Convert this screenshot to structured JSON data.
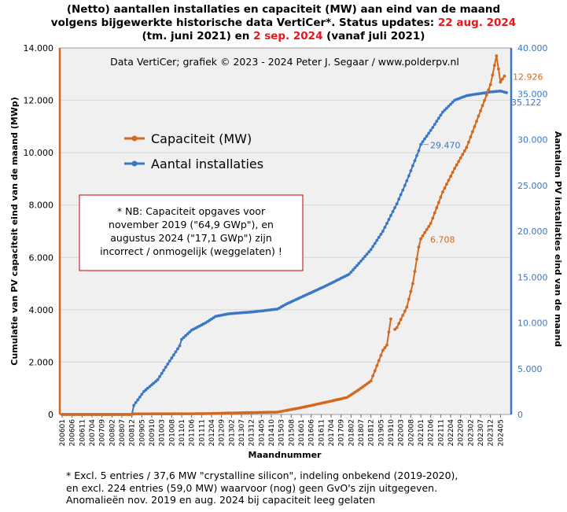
{
  "title": {
    "line1_pre": "(Netto) aantallen installaties en capaciteit (MW) aan eind van de maand",
    "line2_pre": "volgens bijgewerkte historische data VertiCer*. Status updates: ",
    "line2_date": "22 aug. 2024",
    "line3_pre": "(tm. juni 2021) en ",
    "line3_date": "2 sep. 2024",
    "line3_post": " (vanaf juli 2021)"
  },
  "footnote": {
    "line1": "* Excl. 5 entries / 37,6 MW \"crystalline silicon\", indeling onbekend (2019-2020),",
    "line2": "en excl. 224 entries (59,0 MW) waarvoor (nog) geen GvO's zijn uitgegeven.",
    "line3": "Anomalieën nov. 2019 en aug. 2024 bij capaciteit leeg gelaten"
  },
  "colors": {
    "capacity": "#d2691e",
    "count": "#3a77c4",
    "plot_bg": "#f0f0f0",
    "accent_red": "#e8151b"
  },
  "chart_data": {
    "type": "line",
    "credit": "Data VertiCer;  grafiek © 2023 - 2024 Peter J. Segaar / www.polderpv.nl",
    "xlabel": "Maandnummer",
    "ylabel_left": "Cumulatie van PV capaciteit eind van de maand (MWp)",
    "ylabel_right": "Aantallen PV installaties eind van de maand",
    "y_left_lim": [
      0,
      14000
    ],
    "y_right_lim": [
      0,
      40000
    ],
    "y_left_ticks": [
      "0",
      "2.000",
      "4.000",
      "6.000",
      "8.000",
      "10.000",
      "12.000",
      "14.000"
    ],
    "y_right_ticks": [
      "0",
      "5.000",
      "10.000",
      "15.000",
      "20.000",
      "25.000",
      "30.000",
      "35.000",
      "40.000"
    ],
    "x_ticks": [
      "200601",
      "200606",
      "200611",
      "200704",
      "200709",
      "200802",
      "200807",
      "200812",
      "200905",
      "200910",
      "201003",
      "201008",
      "201101",
      "201106",
      "201111",
      "201204",
      "201209",
      "201302",
      "201307",
      "201312",
      "201405",
      "201410",
      "201503",
      "201508",
      "201601",
      "201606",
      "201611",
      "201704",
      "201709",
      "201802",
      "201807",
      "201812",
      "201905",
      "201910",
      "202003",
      "202008",
      "202101",
      "202106",
      "202111",
      "202204",
      "202209",
      "202302",
      "202307",
      "202312",
      "202405"
    ],
    "legend": [
      "Capaciteit (MW)",
      "Aantal installaties"
    ],
    "legend_position": "top-left",
    "note": {
      "line1": "* NB:  Capaciteit opgaves voor",
      "line2": "november 2019 (\"64,9 GWp\"), en",
      "line3": "augustus 2024 (\"17,1 GWp\") zijn",
      "line4": "incorrect / onmogelijk  (weggelaten) !"
    },
    "annotations": [
      {
        "series": "capacity",
        "label": "12.926",
        "month": "202408"
      },
      {
        "series": "count",
        "label": "35.122",
        "month": "202408"
      },
      {
        "series": "count",
        "label": "29.470",
        "month": "202101"
      },
      {
        "series": "capacity",
        "label": "6.708",
        "month": "202101"
      }
    ],
    "capacity_anchors": [
      [
        "200601",
        0
      ],
      [
        "200812",
        0
      ],
      [
        "200901",
        20
      ],
      [
        "201201",
        30
      ],
      [
        "201301",
        55
      ],
      [
        "201501",
        90
      ],
      [
        "201506",
        160
      ],
      [
        "201601",
        260
      ],
      [
        "201701",
        460
      ],
      [
        "201712",
        650
      ],
      [
        "201806",
        950
      ],
      [
        "201812",
        1280
      ],
      [
        "201906",
        2450
      ],
      [
        "201908",
        2650
      ],
      [
        "201910",
        3650
      ],
      [
        "201911",
        null
      ],
      [
        "201912",
        3250
      ],
      [
        "202001",
        3320
      ],
      [
        "202006",
        4100
      ],
      [
        "202009",
        5000
      ],
      [
        "202012",
        6400
      ],
      [
        "202101",
        6708
      ],
      [
        "202106",
        7300
      ],
      [
        "202112",
        8500
      ],
      [
        "202206",
        9400
      ],
      [
        "202212",
        10200
      ],
      [
        "202306",
        11400
      ],
      [
        "202312",
        12600
      ],
      [
        "202403",
        13700
      ],
      [
        "202405",
        12700
      ],
      [
        "202407",
        12926
      ],
      [
        "202408",
        null
      ],
      [
        "202409",
        null
      ]
    ],
    "count_anchors": [
      [
        "200601",
        0
      ],
      [
        "200812",
        0
      ],
      [
        "200901",
        1000
      ],
      [
        "200906",
        2500
      ],
      [
        "201001",
        3800
      ],
      [
        "201006",
        5500
      ],
      [
        "201012",
        7500
      ],
      [
        "201101",
        8200
      ],
      [
        "201106",
        9200
      ],
      [
        "201201",
        10000
      ],
      [
        "201206",
        10700
      ],
      [
        "201301",
        11000
      ],
      [
        "201401",
        11200
      ],
      [
        "201501",
        11500
      ],
      [
        "201506",
        12100
      ],
      [
        "201601",
        12800
      ],
      [
        "201701",
        14000
      ],
      [
        "201801",
        15300
      ],
      [
        "201806",
        16500
      ],
      [
        "201812",
        18000
      ],
      [
        "201906",
        20000
      ],
      [
        "202001",
        23000
      ],
      [
        "202006",
        25500
      ],
      [
        "202012",
        28800
      ],
      [
        "202101",
        29470
      ],
      [
        "202106",
        31000
      ],
      [
        "202112",
        33000
      ],
      [
        "202206",
        34300
      ],
      [
        "202212",
        34800
      ],
      [
        "202306",
        35000
      ],
      [
        "202312",
        35200
      ],
      [
        "202405",
        35300
      ],
      [
        "202408",
        35122
      ]
    ]
  }
}
